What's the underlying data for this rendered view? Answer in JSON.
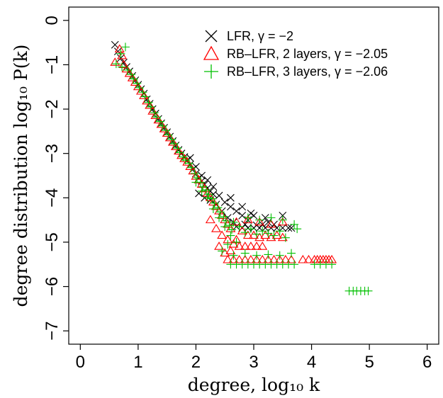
{
  "chart_data": {
    "type": "scatter",
    "xlabel": "degree, log₁₀ k",
    "ylabel": "degree distribution log₁₀ P(k)",
    "xlim": [
      -0.2,
      6.2
    ],
    "ylim": [
      -7.3,
      0.3
    ],
    "xticks": [
      "0",
      "1",
      "2",
      "3",
      "4",
      "5",
      "6"
    ],
    "yticks": [
      "0",
      "−1",
      "−2",
      "−3",
      "−4",
      "−5",
      "−6",
      "−7"
    ],
    "grid": false,
    "legend_position": "top-right",
    "series": [
      {
        "name": "LFR, γ = −2",
        "marker": "x",
        "color": "#000000",
        "points": [
          [
            0.6,
            -0.55
          ],
          [
            0.65,
            -0.7
          ],
          [
            0.7,
            -0.85
          ],
          [
            0.75,
            -0.95
          ],
          [
            0.8,
            -1.05
          ],
          [
            0.85,
            -1.15
          ],
          [
            0.9,
            -1.25
          ],
          [
            0.95,
            -1.35
          ],
          [
            1.0,
            -1.45
          ],
          [
            1.05,
            -1.55
          ],
          [
            1.1,
            -1.65
          ],
          [
            1.15,
            -1.78
          ],
          [
            1.2,
            -1.88
          ],
          [
            1.25,
            -2.0
          ],
          [
            1.3,
            -2.1
          ],
          [
            1.35,
            -2.22
          ],
          [
            1.4,
            -2.32
          ],
          [
            1.45,
            -2.42
          ],
          [
            1.5,
            -2.52
          ],
          [
            1.55,
            -2.62
          ],
          [
            1.6,
            -2.72
          ],
          [
            1.65,
            -2.82
          ],
          [
            1.7,
            -2.92
          ],
          [
            1.75,
            -3.0
          ],
          [
            1.8,
            -3.08
          ],
          [
            1.85,
            -3.15
          ],
          [
            1.9,
            -3.25
          ],
          [
            1.95,
            -3.35
          ],
          [
            2.0,
            -3.45
          ],
          [
            2.05,
            -3.55
          ],
          [
            2.1,
            -3.62
          ],
          [
            2.15,
            -3.7
          ],
          [
            2.2,
            -3.78
          ],
          [
            2.25,
            -3.85
          ],
          [
            2.3,
            -3.92
          ],
          [
            1.9,
            -3.1
          ],
          [
            2.0,
            -3.3
          ],
          [
            2.1,
            -3.5
          ],
          [
            2.2,
            -3.6
          ],
          [
            2.3,
            -3.75
          ],
          [
            2.4,
            -3.95
          ],
          [
            2.5,
            -4.1
          ],
          [
            2.6,
            -4.2
          ],
          [
            2.7,
            -4.3
          ],
          [
            2.8,
            -4.4
          ],
          [
            2.9,
            -4.5
          ],
          [
            2.45,
            -4.3
          ],
          [
            2.55,
            -4.45
          ],
          [
            2.65,
            -4.55
          ],
          [
            2.35,
            -4.15
          ],
          [
            2.15,
            -4.0
          ],
          [
            2.05,
            -3.9
          ],
          [
            2.25,
            -4.05
          ],
          [
            2.6,
            -4.0
          ],
          [
            2.8,
            -4.2
          ],
          [
            3.0,
            -4.4
          ],
          [
            3.2,
            -4.45
          ],
          [
            3.5,
            -4.4
          ],
          [
            3.25,
            -4.55
          ],
          [
            2.7,
            -4.65
          ],
          [
            2.8,
            -4.68
          ],
          [
            2.9,
            -4.68
          ],
          [
            3.0,
            -4.68
          ],
          [
            3.1,
            -4.68
          ],
          [
            3.2,
            -4.68
          ],
          [
            3.3,
            -4.68
          ],
          [
            3.4,
            -4.68
          ],
          [
            3.5,
            -4.68
          ],
          [
            3.6,
            -4.68
          ],
          [
            3.65,
            -4.68
          ],
          [
            2.85,
            -4.6
          ],
          [
            3.05,
            -4.62
          ],
          [
            3.15,
            -4.6
          ],
          [
            3.35,
            -4.6
          ],
          [
            2.95,
            -4.35
          ]
        ]
      },
      {
        "name": "RB–LFR, 2 layers, γ = −2.05",
        "marker": "triangle",
        "color": "#ff0000",
        "points": [
          [
            0.6,
            -0.95
          ],
          [
            0.68,
            -0.65
          ],
          [
            0.72,
            -0.8
          ],
          [
            0.75,
            -1.0
          ],
          [
            0.8,
            -1.1
          ],
          [
            0.85,
            -1.2
          ],
          [
            0.9,
            -1.3
          ],
          [
            0.95,
            -1.4
          ],
          [
            1.0,
            -1.5
          ],
          [
            1.05,
            -1.6
          ],
          [
            1.1,
            -1.7
          ],
          [
            1.15,
            -1.82
          ],
          [
            1.2,
            -1.92
          ],
          [
            1.25,
            -2.05
          ],
          [
            1.3,
            -2.15
          ],
          [
            1.35,
            -2.25
          ],
          [
            1.4,
            -2.35
          ],
          [
            1.45,
            -2.45
          ],
          [
            1.5,
            -2.55
          ],
          [
            1.55,
            -2.65
          ],
          [
            1.6,
            -2.75
          ],
          [
            1.65,
            -2.85
          ],
          [
            1.7,
            -2.95
          ],
          [
            1.75,
            -3.05
          ],
          [
            1.8,
            -3.12
          ],
          [
            1.85,
            -3.2
          ],
          [
            1.9,
            -3.3
          ],
          [
            1.95,
            -3.4
          ],
          [
            2.0,
            -3.52
          ],
          [
            2.05,
            -3.6
          ],
          [
            2.1,
            -3.7
          ],
          [
            2.15,
            -3.8
          ],
          [
            2.2,
            -3.9
          ],
          [
            2.25,
            -4.0
          ],
          [
            2.3,
            -4.1
          ],
          [
            2.35,
            -4.2
          ],
          [
            2.4,
            -4.3
          ],
          [
            2.45,
            -4.4
          ],
          [
            2.5,
            -4.5
          ],
          [
            2.55,
            -4.6
          ],
          [
            2.6,
            -4.7
          ],
          [
            2.25,
            -4.5
          ],
          [
            2.35,
            -4.7
          ],
          [
            2.45,
            -4.85
          ],
          [
            2.55,
            -4.95
          ],
          [
            2.65,
            -5.05
          ],
          [
            2.4,
            -5.1
          ],
          [
            2.5,
            -5.25
          ],
          [
            2.6,
            -5.2
          ],
          [
            2.7,
            -4.95
          ],
          [
            2.8,
            -4.75
          ],
          [
            2.9,
            -4.85
          ],
          [
            3.0,
            -4.85
          ],
          [
            3.1,
            -4.9
          ],
          [
            3.2,
            -4.85
          ],
          [
            3.3,
            -4.9
          ],
          [
            3.4,
            -4.85
          ],
          [
            3.5,
            -4.9
          ],
          [
            2.75,
            -5.1
          ],
          [
            2.85,
            -5.1
          ],
          [
            2.95,
            -5.1
          ],
          [
            3.05,
            -5.1
          ],
          [
            3.15,
            -5.1
          ],
          [
            2.55,
            -5.4
          ],
          [
            2.65,
            -5.4
          ],
          [
            2.75,
            -5.4
          ],
          [
            2.85,
            -5.4
          ],
          [
            2.95,
            -5.4
          ],
          [
            3.05,
            -5.4
          ],
          [
            3.15,
            -5.4
          ],
          [
            3.25,
            -5.4
          ],
          [
            3.35,
            -5.4
          ],
          [
            3.45,
            -5.4
          ],
          [
            3.55,
            -5.4
          ],
          [
            3.65,
            -5.4
          ],
          [
            2.7,
            -4.55
          ],
          [
            2.9,
            -4.5
          ],
          [
            3.1,
            -4.55
          ],
          [
            3.3,
            -4.6
          ],
          [
            3.5,
            -4.55
          ],
          [
            3.85,
            -5.4
          ],
          [
            3.95,
            -5.4
          ],
          [
            4.05,
            -5.4
          ],
          [
            4.1,
            -5.4
          ],
          [
            4.15,
            -5.4
          ],
          [
            4.2,
            -5.4
          ],
          [
            4.25,
            -5.4
          ],
          [
            4.3,
            -5.4
          ],
          [
            4.35,
            -5.4
          ]
        ]
      },
      {
        "name": "RB–LFR, 3 layers, γ = −2.06",
        "marker": "plus",
        "color": "#00c000",
        "points": [
          [
            0.62,
            -0.98
          ],
          [
            0.7,
            -0.75
          ],
          [
            0.72,
            -1.05
          ],
          [
            0.78,
            -0.6
          ],
          [
            0.82,
            -1.12
          ],
          [
            0.88,
            -1.22
          ],
          [
            0.92,
            -1.32
          ],
          [
            0.98,
            -1.42
          ],
          [
            1.02,
            -1.52
          ],
          [
            1.08,
            -1.62
          ],
          [
            1.12,
            -1.72
          ],
          [
            1.18,
            -1.85
          ],
          [
            1.22,
            -1.95
          ],
          [
            1.28,
            -2.08
          ],
          [
            1.32,
            -2.18
          ],
          [
            1.38,
            -2.28
          ],
          [
            1.42,
            -2.38
          ],
          [
            1.48,
            -2.48
          ],
          [
            1.52,
            -2.58
          ],
          [
            1.58,
            -2.68
          ],
          [
            1.62,
            -2.78
          ],
          [
            1.68,
            -2.88
          ],
          [
            1.72,
            -2.98
          ],
          [
            1.78,
            -3.08
          ],
          [
            1.82,
            -3.15
          ],
          [
            1.88,
            -3.22
          ],
          [
            1.92,
            -3.32
          ],
          [
            1.98,
            -3.45
          ],
          [
            2.02,
            -3.55
          ],
          [
            2.08,
            -3.65
          ],
          [
            2.12,
            -3.75
          ],
          [
            2.18,
            -3.82
          ],
          [
            2.22,
            -3.92
          ],
          [
            2.28,
            -4.02
          ],
          [
            2.32,
            -4.12
          ],
          [
            2.38,
            -4.22
          ],
          [
            2.42,
            -4.32
          ],
          [
            2.48,
            -4.42
          ],
          [
            2.52,
            -4.52
          ],
          [
            2.58,
            -4.62
          ],
          [
            2.62,
            -4.72
          ],
          [
            2.0,
            -3.65
          ],
          [
            2.1,
            -3.85
          ],
          [
            2.2,
            -4.0
          ],
          [
            2.3,
            -4.25
          ],
          [
            2.4,
            -4.45
          ],
          [
            2.5,
            -4.65
          ],
          [
            2.6,
            -4.85
          ],
          [
            2.7,
            -5.0
          ],
          [
            2.45,
            -5.2
          ],
          [
            2.55,
            -5.05
          ],
          [
            2.65,
            -4.55
          ],
          [
            2.75,
            -4.65
          ],
          [
            2.85,
            -4.78
          ],
          [
            2.95,
            -4.7
          ],
          [
            3.05,
            -4.82
          ],
          [
            3.15,
            -4.75
          ],
          [
            3.25,
            -4.8
          ],
          [
            3.35,
            -4.85
          ],
          [
            3.45,
            -4.75
          ],
          [
            3.55,
            -4.9
          ],
          [
            2.6,
            -5.5
          ],
          [
            2.7,
            -5.5
          ],
          [
            2.8,
            -5.5
          ],
          [
            2.9,
            -5.5
          ],
          [
            3.0,
            -5.5
          ],
          [
            3.1,
            -5.5
          ],
          [
            3.2,
            -5.5
          ],
          [
            3.3,
            -5.5
          ],
          [
            3.4,
            -5.5
          ],
          [
            3.5,
            -5.5
          ],
          [
            3.6,
            -5.5
          ],
          [
            3.7,
            -5.5
          ],
          [
            2.65,
            -5.3
          ],
          [
            2.85,
            -5.25
          ],
          [
            3.05,
            -5.3
          ],
          [
            3.25,
            -5.28
          ],
          [
            3.45,
            -5.3
          ],
          [
            3.65,
            -5.25
          ],
          [
            2.9,
            -4.45
          ],
          [
            3.1,
            -4.5
          ],
          [
            3.3,
            -4.45
          ],
          [
            3.5,
            -4.5
          ],
          [
            3.7,
            -4.6
          ],
          [
            3.75,
            -4.7
          ],
          [
            4.05,
            -5.5
          ],
          [
            4.15,
            -5.5
          ],
          [
            4.25,
            -5.5
          ],
          [
            4.35,
            -5.5
          ],
          [
            4.65,
            -6.1
          ],
          [
            4.72,
            -6.1
          ],
          [
            4.78,
            -6.1
          ],
          [
            4.85,
            -6.1
          ],
          [
            4.92,
            -6.1
          ],
          [
            4.98,
            -6.1
          ]
        ]
      }
    ]
  }
}
